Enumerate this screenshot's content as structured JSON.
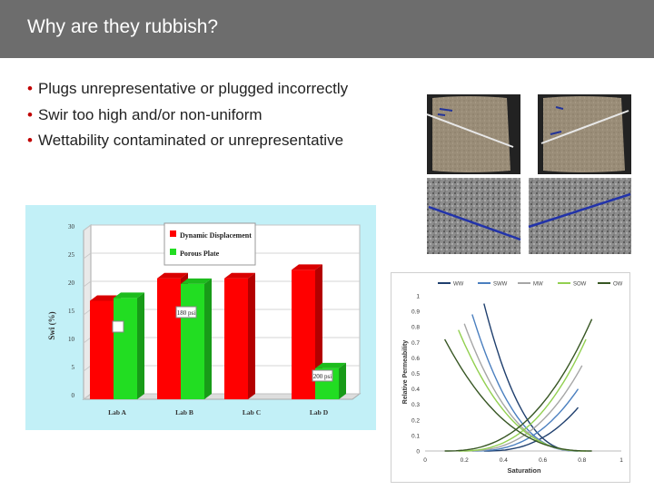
{
  "slide": {
    "title": "Why are they rubbish?",
    "bullets": [
      "Plugs unrepresentative or plugged incorrectly",
      "Swir too high and/or non-uniform",
      "Wettability contaminated or unrepresentative"
    ]
  },
  "chart_data": [
    {
      "type": "bar",
      "categories": [
        "Lab A",
        "Lab B",
        "Lab C",
        "Lab D"
      ],
      "series": [
        {
          "name": "Dynamic Displacement",
          "color": "#ff0000",
          "values": [
            17.5,
            21.5,
            21.5,
            23.0
          ]
        },
        {
          "name": "Porous Plate",
          "color": "#22dd22",
          "values": [
            18.0,
            20.5,
            null,
            5.5
          ]
        }
      ],
      "ylabel": "Swi (%)",
      "ylim": [
        0,
        30
      ],
      "yticks": [
        "0",
        "5",
        "10",
        "15",
        "20",
        "25",
        "30"
      ],
      "annotations": [
        "180 psi",
        "200 psi"
      ],
      "grid": true,
      "legend": "top"
    },
    {
      "type": "line",
      "series": [
        {
          "name": "WW",
          "color": "#1f3f6e"
        },
        {
          "name": "SWW",
          "color": "#4a7fbf"
        },
        {
          "name": "MW",
          "color": "#a6a6a6"
        },
        {
          "name": "SOW",
          "color": "#92d050"
        },
        {
          "name": "OW",
          "color": "#375623"
        }
      ],
      "xlabel": "Saturation",
      "ylabel": "Relative Permeability",
      "xlim": [
        0,
        1
      ],
      "ylim": [
        0,
        1
      ],
      "xticks": [
        "0",
        "0.2",
        "0.4",
        "0.6",
        "0.8",
        "1"
      ],
      "yticks": [
        "0",
        "0.1",
        "0.2",
        "0.3",
        "0.4",
        "0.5",
        "0.6",
        "0.7",
        "0.8",
        "0.9",
        "1"
      ],
      "legend": "top"
    }
  ],
  "colors": {
    "title_bar": "#6d6d6d",
    "bullet": "#c00000"
  }
}
